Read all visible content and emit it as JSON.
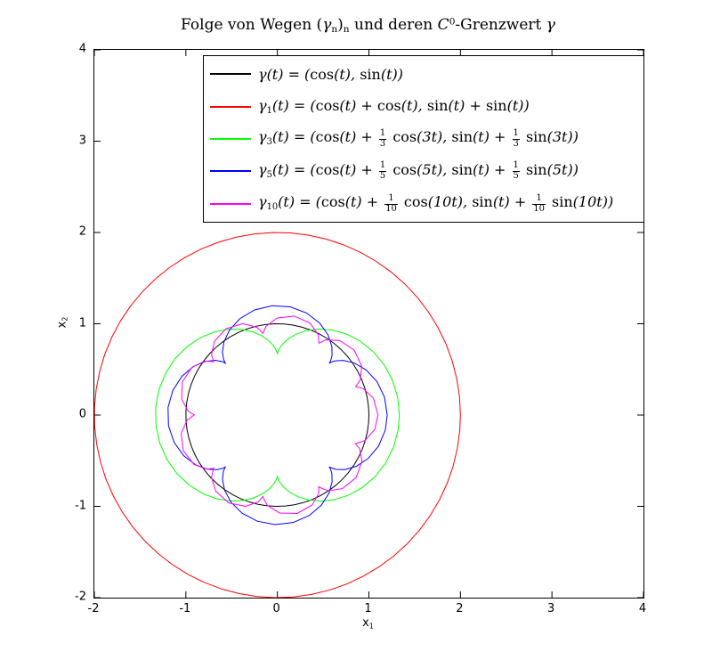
{
  "chart_data": {
    "type": "line",
    "subtype": "parametric-curves",
    "title": "Folge von Wegen (γ_n)_n und deren C^0-Grenzwert γ",
    "title_markup": "Folge von Wegen (γ_{n})_{n} und deren *C*^{0}-Grenzwert γ",
    "xlabel_markup": "x_{1}",
    "ylabel_markup": "x_{2}",
    "xlim": [
      -2,
      4
    ],
    "ylim": [
      -2,
      4
    ],
    "xticks": [
      -2,
      -1,
      0,
      1,
      2,
      3,
      4
    ],
    "yticks": [
      -2,
      -1,
      0,
      1,
      2,
      3,
      4
    ],
    "grid": false,
    "legend_position": "top-inside",
    "parametric_model": "x(t) = cos(t) + a·cos(n·t),  y(t) = sin(t) + a·sin(n·t),  t ∈ [0, 2π]",
    "t_range": [
      0,
      6.283185307179586
    ],
    "t_step": 0.1,
    "series": [
      {
        "label_markup": "γ(t) = (cos(t), sin(t))",
        "color": "#000000",
        "n": 0,
        "a": 0,
        "note": "C0 limit curve: unit circle, radius 1, center (0,0)"
      },
      {
        "label_markup": "γ_{1}(t) = (cos(t) + cos(t), sin(t) + sin(t))",
        "color": "#ff0000",
        "n": 1,
        "a": 1,
        "note": "circle, radius 2, center (0,0)"
      },
      {
        "label_markup": "γ_{3}(t) = (cos(t) + {1/3} cos(3t), sin(t) + {1/3} sin(3t))",
        "color": "#00ff00",
        "n": 3,
        "a": 0.3333333333333333,
        "note": "2 cusps, radius between 2/3 and 4/3"
      },
      {
        "label_markup": "γ_{5}(t) = (cos(t) + {1/5} cos(5t), sin(t) + {1/5} sin(5t))",
        "color": "#0000ff",
        "n": 5,
        "a": 0.2,
        "note": "4 cusps, radius between 0.8 and 1.2"
      },
      {
        "label_markup": "γ_{10}(t) = (cos(t) + {1/10} cos(10t), sin(t) + {1/10} sin(10t))",
        "color": "#ff00ff",
        "n": 10,
        "a": 0.1,
        "note": "9 cusps, radius between 0.9 and 1.1"
      }
    ]
  }
}
